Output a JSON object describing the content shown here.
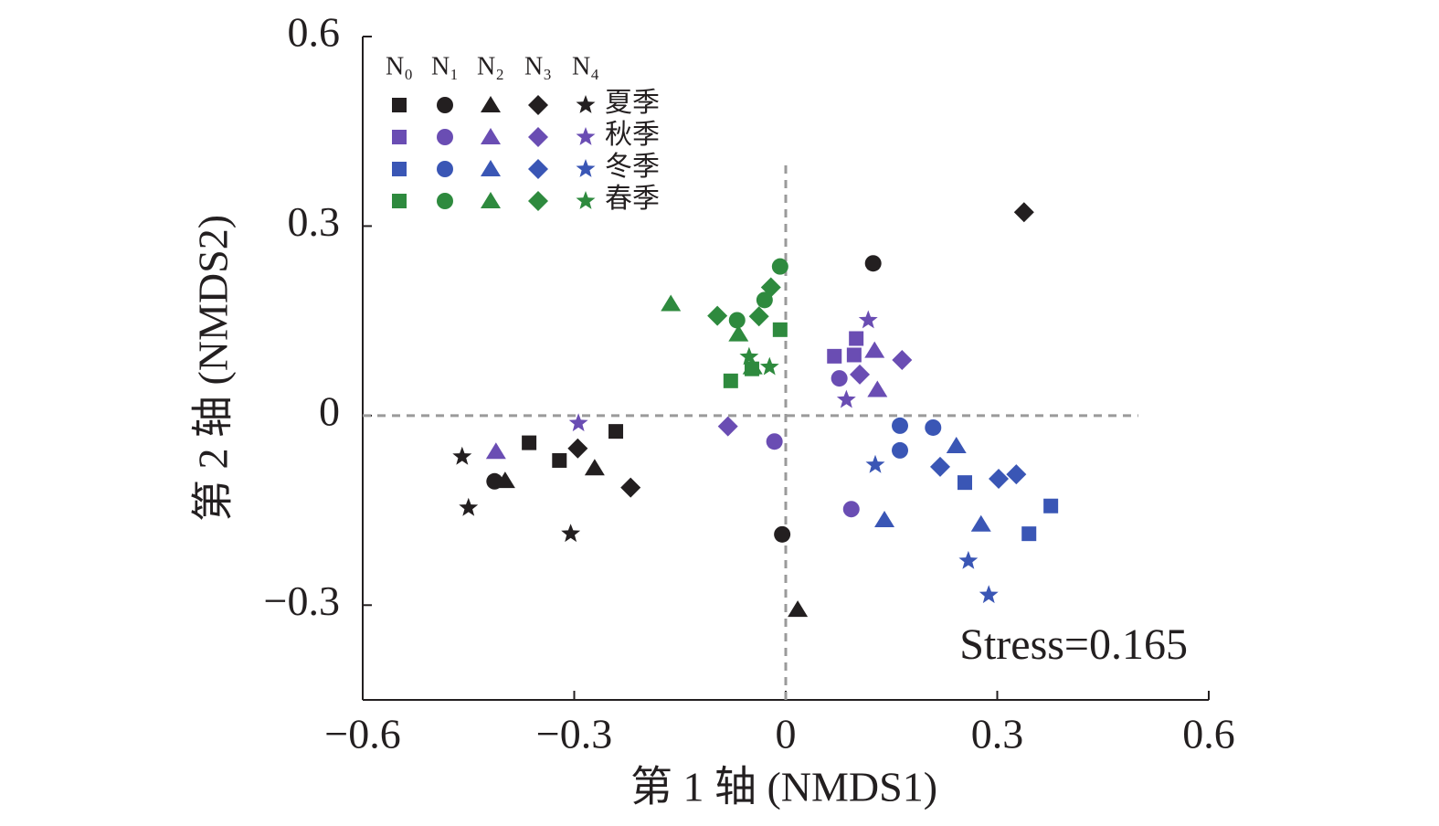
{
  "chart_data": {
    "type": "scatter",
    "xlabel": "第 1 轴 (NMDS1)",
    "ylabel": "第 2 轴 (NMDS2)",
    "annotation": "Stress=0.165",
    "xlim": [
      -0.6,
      0.6
    ],
    "ylim": [
      -0.45,
      0.6
    ],
    "xticks": [
      {
        "value": -0.6,
        "label": "−0.6"
      },
      {
        "value": -0.3,
        "label": "−0.3"
      },
      0,
      0.3,
      0.6
    ],
    "yticks": [
      {
        "value": -0.3,
        "label": "−0.3"
      },
      0,
      0.3,
      0.6
    ],
    "reference_lines": [
      {
        "axis": "x",
        "value": 0,
        "extent": [
          -0.45,
          0.4
        ]
      },
      {
        "axis": "y",
        "value": 0,
        "extent": [
          -0.6,
          0.5
        ]
      }
    ],
    "legend_columns": [
      "N₀",
      "N₁",
      "N₂",
      "N₃",
      "N₄"
    ],
    "markers": [
      "square",
      "circle",
      "triangle",
      "diamond",
      "star"
    ],
    "series": [
      {
        "name": "夏季",
        "color": "#231f20",
        "groups": [
          {
            "x": [
              -0.364,
              -0.321,
              -0.241
            ],
            "y": [
              -0.043,
              -0.071,
              -0.025
            ]
          },
          {
            "x": [
              0.124,
              -0.413,
              -0.005
            ],
            "y": [
              0.241,
              -0.104,
              -0.188
            ]
          },
          {
            "x": [
              -0.398,
              -0.271,
              0.017
            ],
            "y": [
              -0.103,
              -0.083,
              -0.307
            ]
          },
          {
            "x": [
              0.338,
              -0.295,
              -0.22
            ],
            "y": [
              0.322,
              -0.052,
              -0.114
            ]
          },
          {
            "x": [
              -0.459,
              -0.45,
              -0.305
            ],
            "y": [
              -0.065,
              -0.146,
              -0.187
            ]
          }
        ]
      },
      {
        "name": "秋季",
        "color": "#6a4db3",
        "groups": [
          {
            "x": [
              0.069,
              0.097,
              0.1
            ],
            "y": [
              0.094,
              0.096,
              0.122
            ]
          },
          {
            "x": [
              0.076,
              -0.016,
              0.093
            ],
            "y": [
              0.059,
              -0.041,
              -0.148
            ]
          },
          {
            "x": [
              -0.411,
              0.126,
              0.13
            ],
            "y": [
              -0.057,
              0.103,
              0.041
            ]
          },
          {
            "x": [
              0.105,
              0.165,
              -0.082
            ],
            "y": [
              0.065,
              0.088,
              -0.017
            ]
          },
          {
            "x": [
              -0.294,
              0.117,
              0.086
            ],
            "y": [
              -0.012,
              0.151,
              0.025
            ]
          }
        ]
      },
      {
        "name": "冬季",
        "color": "#3a56b5",
        "groups": [
          {
            "x": [
              0.254,
              0.345,
              0.376
            ],
            "y": [
              -0.106,
              -0.187,
              -0.143
            ]
          },
          {
            "x": [
              0.162,
              0.162,
              0.209
            ],
            "y": [
              -0.016,
              -0.055,
              -0.019
            ]
          },
          {
            "x": [
              0.14,
              0.242,
              0.277
            ],
            "y": [
              -0.165,
              -0.048,
              -0.172
            ]
          },
          {
            "x": [
              0.219,
              0.302,
              0.327
            ],
            "y": [
              -0.081,
              -0.1,
              -0.093
            ]
          },
          {
            "x": [
              0.127,
              0.259,
              0.288
            ],
            "y": [
              -0.078,
              -0.23,
              -0.284
            ]
          }
        ]
      },
      {
        "name": "春季",
        "color": "#2e8a3e",
        "groups": [
          {
            "x": [
              -0.008,
              -0.078,
              -0.048
            ],
            "y": [
              0.136,
              0.055,
              0.074
            ]
          },
          {
            "x": [
              -0.008,
              -0.069,
              -0.03
            ],
            "y": [
              0.236,
              0.151,
              0.183
            ]
          },
          {
            "x": [
              -0.163,
              -0.067,
              -0.047
            ],
            "y": [
              0.177,
              0.129,
              0.077
            ]
          },
          {
            "x": [
              -0.097,
              -0.038,
              -0.021
            ],
            "y": [
              0.158,
              0.157,
              0.203
            ]
          },
          {
            "x": [
              -0.052,
              -0.023
            ],
            "y": [
              0.093,
              0.077
            ]
          }
        ]
      }
    ]
  }
}
